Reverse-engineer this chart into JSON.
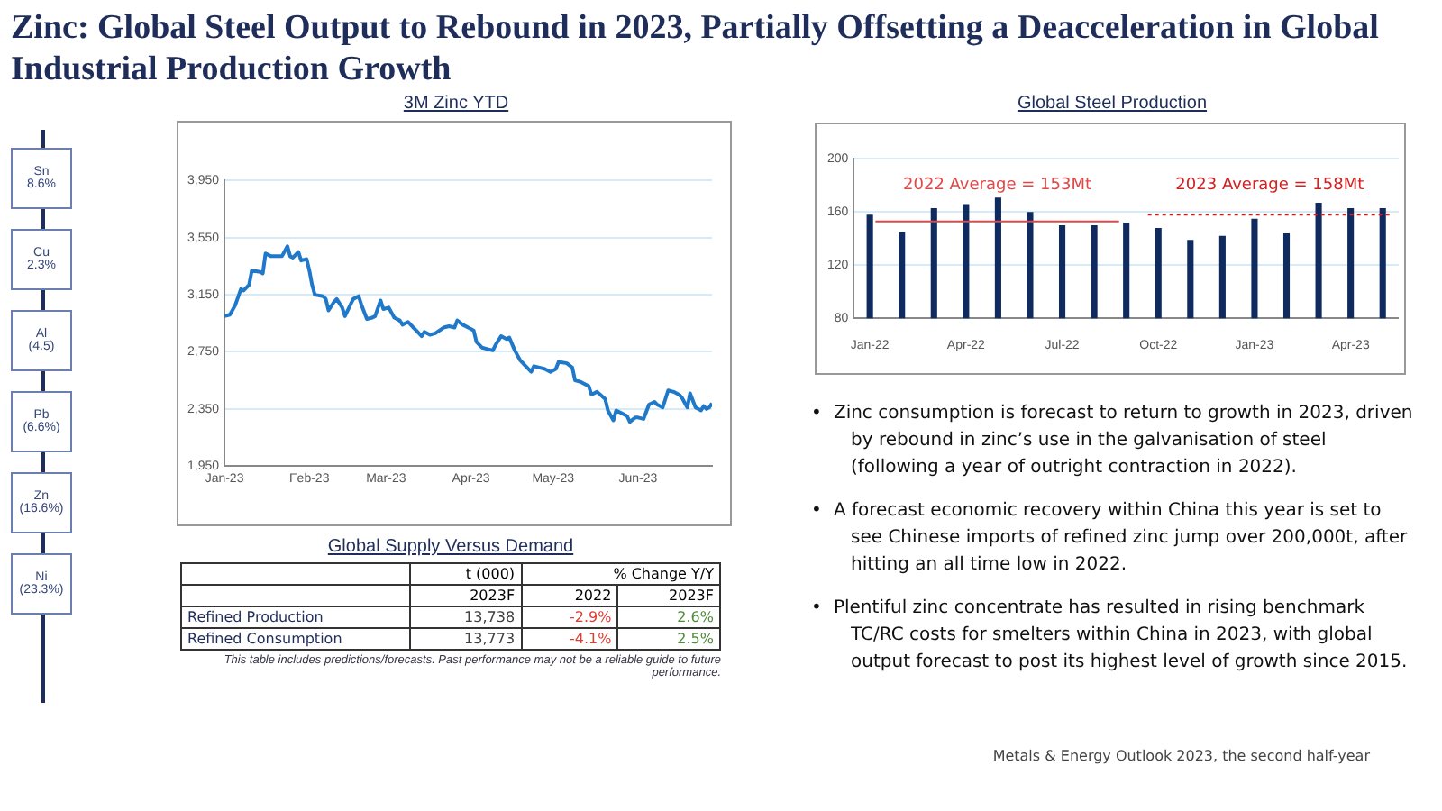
{
  "chart_data": [
    {
      "type": "other",
      "title": "Zinc: Global Steel Output to Rebound in 2023, Partially Offsetting a Deacceleration in Global Industrial Production Growth",
      "annotations": [
        "Metals & Energy Outlook 2023, the second half-year"
      ]
    },
    {
      "type": "other",
      "annotations": [
        "Sn\n8.6%",
        "Cu\n2.3%",
        "Al\n(4.5)",
        "Pb\n(6.6%)",
        "Zn\n(16.6%)",
        "Ni\n(23.3%)"
      ]
    },
    {
      "type": "line",
      "title": "3M Zinc YTD",
      "grid": "y",
      "xlim": [
        "2023-01-01",
        "2023-06-28"
      ],
      "xticks": [
        {
          "value": "2023-01-01",
          "label": "Jan-23"
        },
        {
          "value": "2023-02-01",
          "label": "Feb-23"
        },
        {
          "value": "2023-03-01",
          "label": "Mar-23"
        },
        {
          "value": "2023-04-01",
          "label": "Apr-23"
        },
        {
          "value": "2023-05-01",
          "label": "May-23"
        },
        {
          "value": "2023-06-01",
          "label": "Jun-23"
        }
      ],
      "ylim": [
        1950,
        3950
      ],
      "yticks": [
        {
          "value": 1950,
          "label": "1,950"
        },
        {
          "value": 2350,
          "label": "2,350"
        },
        {
          "value": 2750,
          "label": "2,750"
        },
        {
          "value": 3150,
          "label": "3,150"
        },
        {
          "value": 3550,
          "label": "3,550"
        },
        {
          "value": 3950,
          "label": "3,950"
        }
      ],
      "series": [
        {
          "color": "#1f78c8",
          "x": [
            "2023-01-01",
            "2023-01-03",
            "2023-01-05",
            "2023-01-07",
            "2023-01-08",
            "2023-01-10",
            "2023-01-11",
            "2023-01-14",
            "2023-01-15",
            "2023-01-16",
            "2023-01-18",
            "2023-01-19",
            "2023-01-22",
            "2023-01-24",
            "2023-01-25",
            "2023-01-26",
            "2023-01-28",
            "2023-01-29",
            "2023-01-31",
            "2023-02-01",
            "2023-02-02",
            "2023-02-03",
            "2023-02-06",
            "2023-02-07",
            "2023-02-08",
            "2023-02-10",
            "2023-02-11",
            "2023-02-13",
            "2023-02-14",
            "2023-02-16",
            "2023-02-17",
            "2023-02-19",
            "2023-02-20",
            "2023-02-22",
            "2023-02-24",
            "2023-02-25",
            "2023-02-27",
            "2023-02-28",
            "2023-03-02",
            "2023-03-04",
            "2023-03-06",
            "2023-03-07",
            "2023-03-09",
            "2023-03-11",
            "2023-03-12",
            "2023-03-14",
            "2023-03-15",
            "2023-03-17",
            "2023-03-19",
            "2023-03-22",
            "2023-03-24",
            "2023-03-26",
            "2023-03-27",
            "2023-03-29",
            "2023-03-31",
            "2023-04-02",
            "2023-04-03",
            "2023-04-05",
            "2023-04-07",
            "2023-04-09",
            "2023-04-10",
            "2023-04-12",
            "2023-04-14",
            "2023-04-15",
            "2023-04-17",
            "2023-04-19",
            "2023-04-21",
            "2023-04-23",
            "2023-04-24",
            "2023-04-26",
            "2023-04-28",
            "2023-04-30",
            "2023-05-02",
            "2023-05-03",
            "2023-05-06",
            "2023-05-08",
            "2023-05-09",
            "2023-05-11",
            "2023-05-14",
            "2023-05-15",
            "2023-05-17",
            "2023-05-20",
            "2023-05-21",
            "2023-05-23",
            "2023-05-24",
            "2023-05-26",
            "2023-05-28",
            "2023-05-29",
            "2023-05-31",
            "2023-06-01",
            "2023-06-03",
            "2023-06-05",
            "2023-06-07",
            "2023-06-08",
            "2023-06-10",
            "2023-06-12",
            "2023-06-14",
            "2023-06-16",
            "2023-06-17",
            "2023-06-19",
            "2023-06-20",
            "2023-06-22",
            "2023-06-24",
            "2023-06-25",
            "2023-06-26",
            "2023-06-27",
            "2023-06-28"
          ],
          "values": [
            3000,
            3010,
            3080,
            3190,
            3180,
            3220,
            3320,
            3310,
            3300,
            3440,
            3420,
            3420,
            3420,
            3490,
            3420,
            3410,
            3450,
            3390,
            3400,
            3320,
            3220,
            3150,
            3140,
            3120,
            3040,
            3100,
            3120,
            3060,
            3000,
            3080,
            3120,
            3140,
            3080,
            2980,
            2990,
            3000,
            3110,
            3050,
            3060,
            2990,
            2970,
            2940,
            2960,
            2920,
            2900,
            2860,
            2890,
            2870,
            2880,
            2920,
            2930,
            2920,
            2970,
            2940,
            2920,
            2900,
            2820,
            2780,
            2770,
            2760,
            2800,
            2860,
            2840,
            2850,
            2760,
            2690,
            2650,
            2610,
            2650,
            2640,
            2630,
            2610,
            2630,
            2680,
            2670,
            2640,
            2550,
            2540,
            2510,
            2450,
            2470,
            2420,
            2340,
            2270,
            2340,
            2320,
            2300,
            2260,
            2290,
            2290,
            2280,
            2380,
            2400,
            2380,
            2360,
            2480,
            2470,
            2450,
            2430,
            2360,
            2460,
            2360,
            2340,
            2370,
            2350,
            2360,
            2390
          ]
        }
      ]
    },
    {
      "type": "other",
      "title": "Global Supply Versus Demand",
      "categories": [
        "2023F",
        "2022",
        "2023F"
      ],
      "y_categories": [
        "Refined Production",
        "Refined Consumption"
      ],
      "cell_labels": [
        [
          "13,738",
          "-2.9%",
          "2.6%"
        ],
        [
          "13,773",
          "-4.1%",
          "2.5%"
        ]
      ],
      "colors": [
        "#404040",
        "#e03c31",
        "#4e8a3a"
      ],
      "annotations": [
        "t (000)",
        "% Change Y/Y",
        "This table includes predictions/forecasts. Past performance  may not be a reliable guide to future performance."
      ]
    },
    {
      "type": "bar",
      "title": "Global Steel Production",
      "grid": "y",
      "categories": [
        "Jan-22",
        null,
        null,
        "Apr-22",
        null,
        null,
        "Jul-22",
        null,
        null,
        "Oct-22",
        null,
        null,
        "Jan-23",
        null,
        null,
        "Apr-23",
        null
      ],
      "values": [
        158,
        145,
        163,
        166,
        171,
        160,
        150,
        150,
        152,
        148,
        139,
        142,
        155,
        144,
        167,
        163,
        163
      ],
      "color": "#0f2a5e",
      "ylim": [
        80,
        200
      ],
      "yticks": [
        80,
        120,
        160,
        200
      ],
      "ref_lines": [
        {
          "axis": "y",
          "value": 153,
          "label": "2022 Average = 153Mt",
          "color": "#e04848",
          "line_style": "solid"
        },
        {
          "axis": "y",
          "value": 158,
          "label": "2023 Average = 158Mt",
          "color": "#d42020",
          "line_style": "dotted"
        }
      ]
    },
    {
      "type": "other",
      "annotations": [
        "•\tZinc consumption is forecast to return to growth in 2023, driven by rebound in zinc’s use in the galvanisation of steel (following a year of outright contraction in 2022).",
        "•\tA forecast economic recovery within China this year is set to see Chinese imports of refined zinc jump over 200,000t, after hitting an all time low in 2022.",
        "•\tPlentiful zinc concentrate has resulted in rising benchmark TC/RC costs for smelters within China in 2023, with global output forecast to post its highest level of growth since 2015."
      ]
    }
  ]
}
